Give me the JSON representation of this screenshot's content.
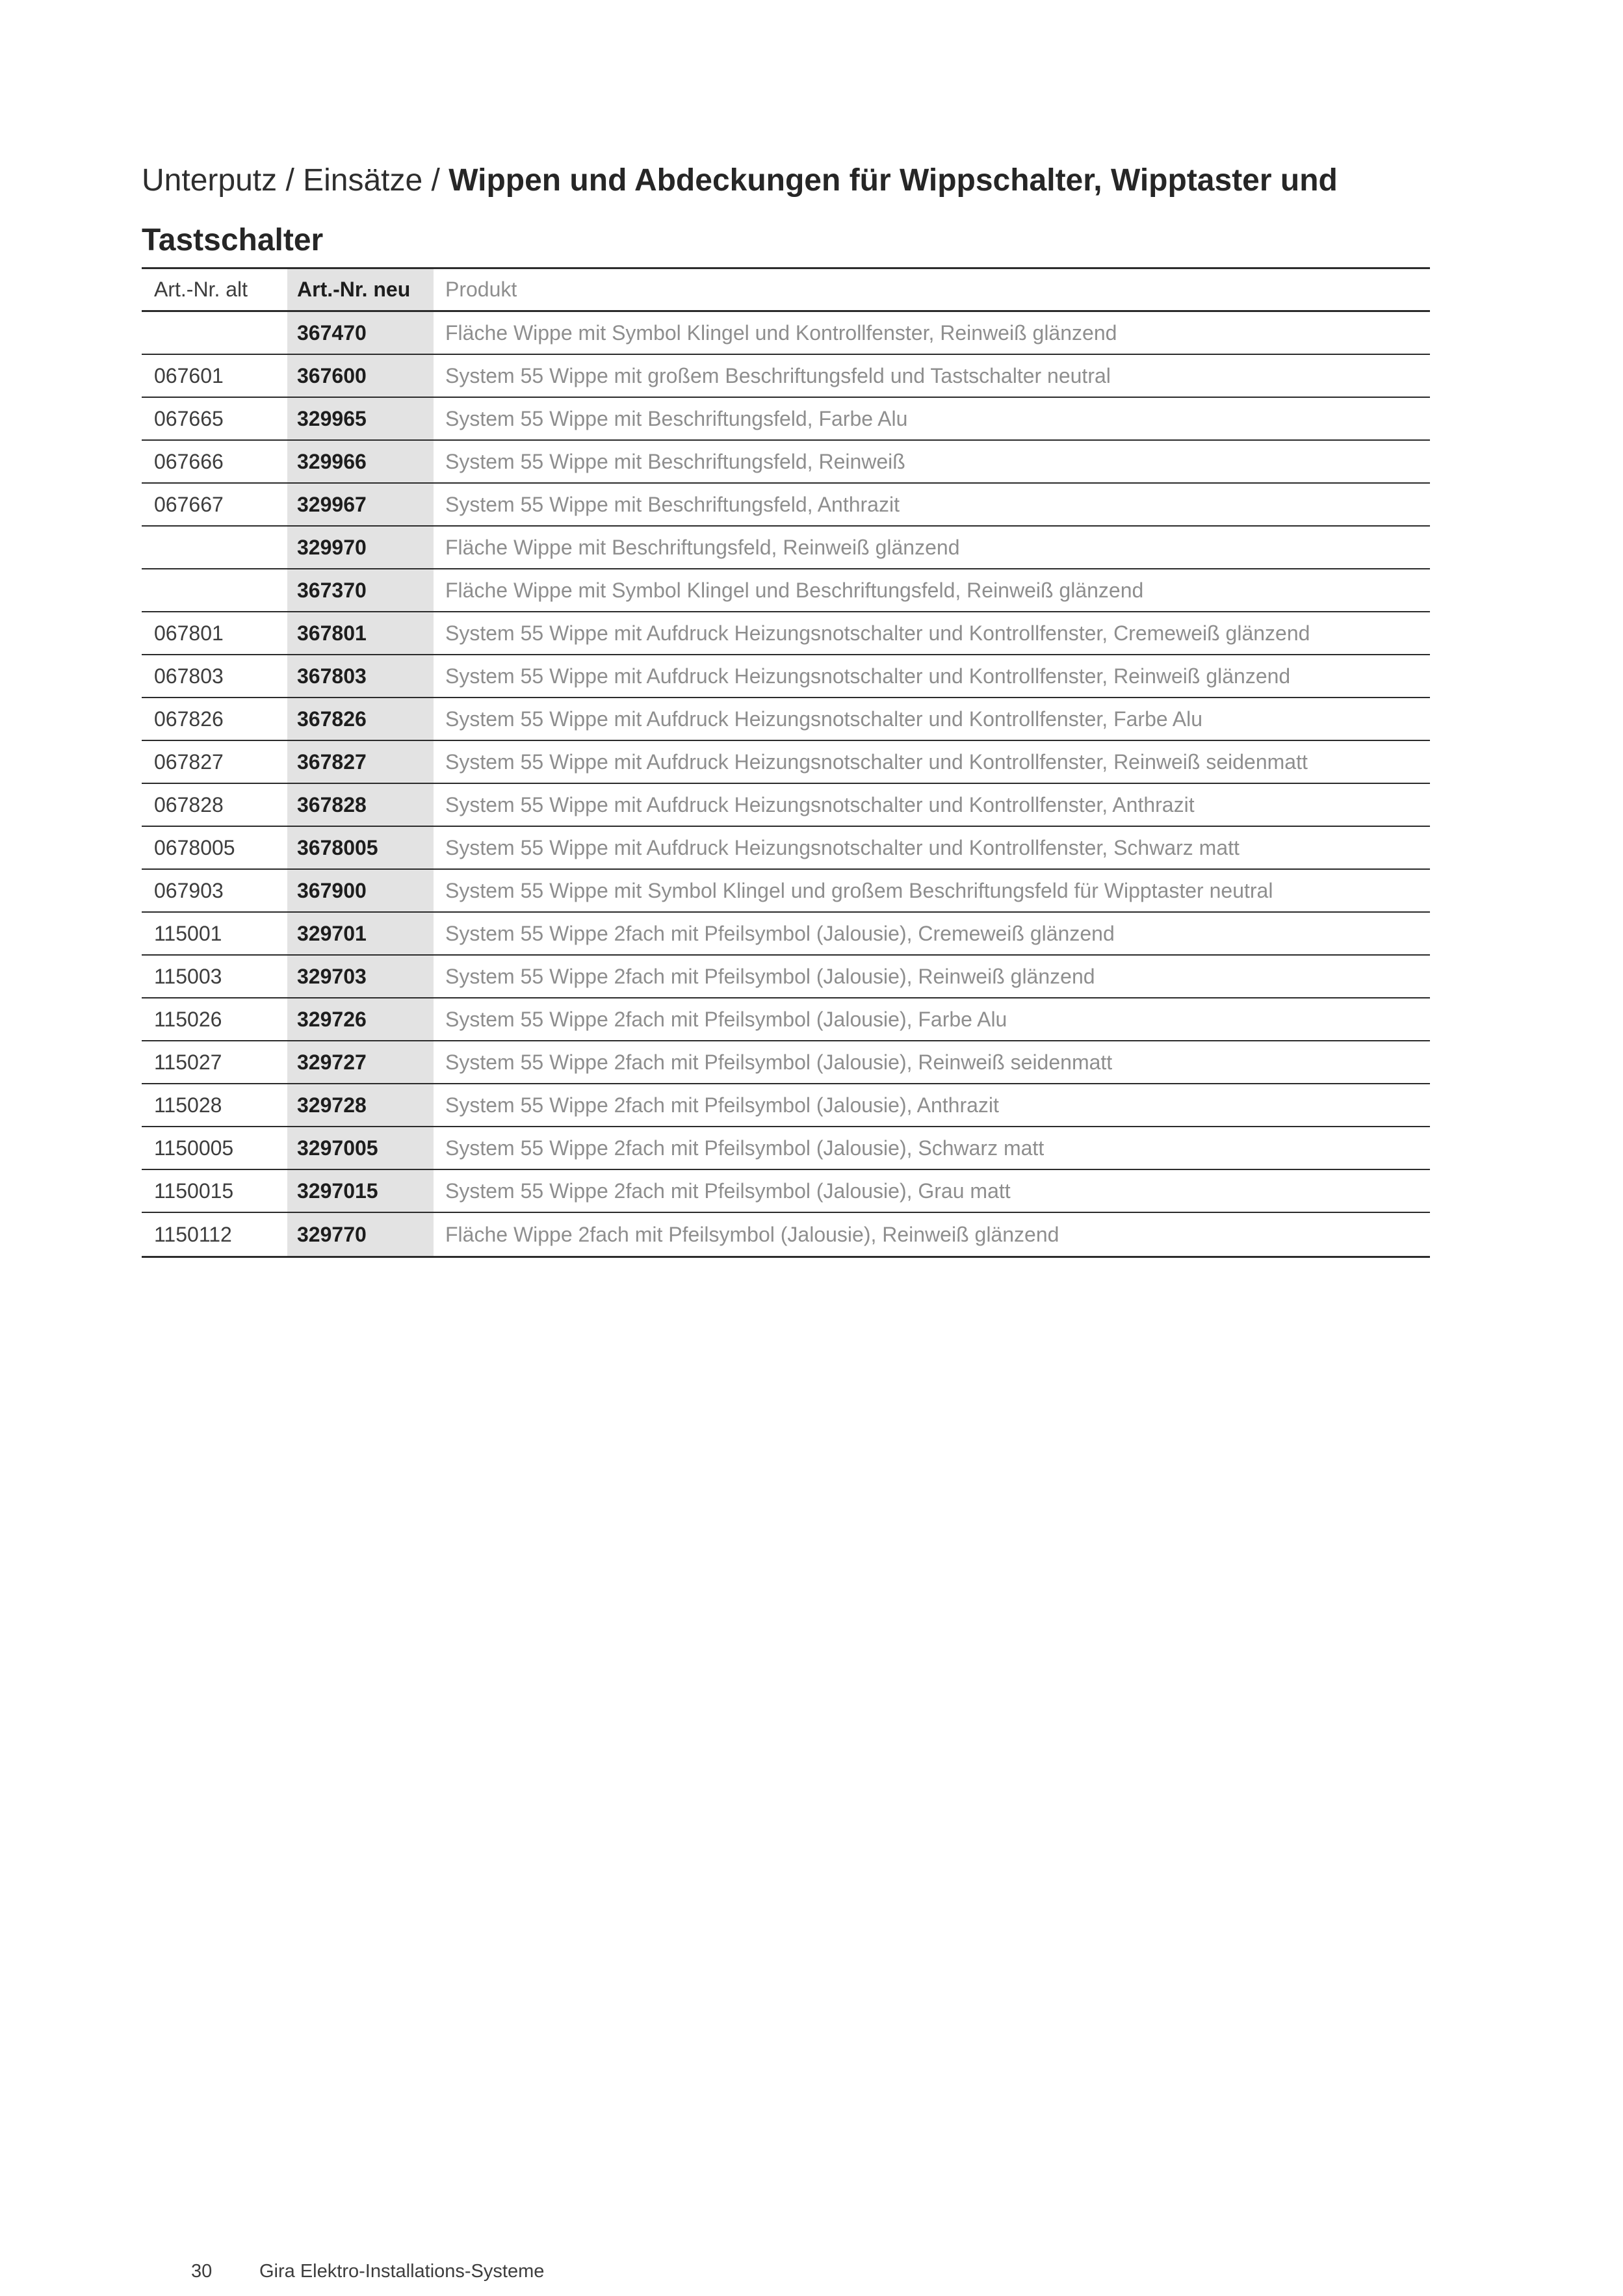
{
  "title": {
    "prefix": "Unterputz / Einsätze / ",
    "emphasis_line1": "Wippen und Abdeckungen für Wippschalter, Wipptaster und",
    "emphasis_line2": "Tastschalter"
  },
  "table": {
    "columns": [
      "Art.-Nr. alt",
      "Art.-Nr. neu",
      "Produkt"
    ],
    "rows": [
      {
        "alt": "",
        "neu": "367470",
        "produkt": "Fläche Wippe mit Symbol Klingel und Kontrollfenster, Reinweiß glänzend"
      },
      {
        "alt": "067601",
        "neu": "367600",
        "produkt": "System 55 Wippe mit großem Beschriftungsfeld und Tastschalter neutral"
      },
      {
        "alt": "067665",
        "neu": "329965",
        "produkt": "System 55 Wippe mit Beschriftungsfeld, Farbe Alu"
      },
      {
        "alt": "067666",
        "neu": "329966",
        "produkt": "System 55 Wippe mit Beschriftungsfeld, Reinweiß"
      },
      {
        "alt": "067667",
        "neu": "329967",
        "produkt": "System 55 Wippe mit Beschriftungsfeld, Anthrazit"
      },
      {
        "alt": "",
        "neu": "329970",
        "produkt": "Fläche Wippe mit Beschriftungsfeld, Reinweiß glänzend"
      },
      {
        "alt": "",
        "neu": "367370",
        "produkt": "Fläche Wippe mit Symbol Klingel und Beschriftungsfeld, Reinweiß glänzend"
      },
      {
        "alt": "067801",
        "neu": "367801",
        "produkt": "System 55 Wippe mit Aufdruck Heizungsnotschalter und Kontrollfenster, Cremeweiß glänzend"
      },
      {
        "alt": "067803",
        "neu": "367803",
        "produkt": "System 55 Wippe mit Aufdruck Heizungsnotschalter und Kontrollfenster, Reinweiß glänzend"
      },
      {
        "alt": "067826",
        "neu": "367826",
        "produkt": "System 55 Wippe mit Aufdruck Heizungsnotschalter und Kontrollfenster, Farbe Alu"
      },
      {
        "alt": "067827",
        "neu": "367827",
        "produkt": "System 55 Wippe mit Aufdruck Heizungsnotschalter und Kontrollfenster, Reinweiß seidenmatt"
      },
      {
        "alt": "067828",
        "neu": "367828",
        "produkt": "System 55 Wippe mit Aufdruck Heizungsnotschalter und Kontrollfenster, Anthrazit"
      },
      {
        "alt": "0678005",
        "neu": "3678005",
        "produkt": "System 55 Wippe mit Aufdruck Heizungsnotschalter und Kontrollfenster, Schwarz matt"
      },
      {
        "alt": "067903",
        "neu": "367900",
        "produkt": "System 55 Wippe mit Symbol Klingel und großem Beschriftungsfeld für Wipptaster neutral"
      },
      {
        "alt": "115001",
        "neu": "329701",
        "produkt": "System 55 Wippe 2fach mit Pfeilsymbol (Jalousie), Cremeweiß glänzend"
      },
      {
        "alt": "115003",
        "neu": "329703",
        "produkt": "System 55 Wippe 2fach mit Pfeilsymbol (Jalousie), Reinweiß glänzend"
      },
      {
        "alt": "115026",
        "neu": "329726",
        "produkt": "System 55 Wippe 2fach mit Pfeilsymbol (Jalousie), Farbe Alu"
      },
      {
        "alt": "115027",
        "neu": "329727",
        "produkt": "System 55 Wippe 2fach mit Pfeilsymbol (Jalousie), Reinweiß seidenmatt"
      },
      {
        "alt": "115028",
        "neu": "329728",
        "produkt": "System 55 Wippe 2fach mit Pfeilsymbol (Jalousie), Anthrazit"
      },
      {
        "alt": "1150005",
        "neu": "3297005",
        "produkt": "System 55 Wippe 2fach mit Pfeilsymbol (Jalousie), Schwarz matt"
      },
      {
        "alt": "1150015",
        "neu": "3297015",
        "produkt": "System 55 Wippe 2fach mit Pfeilsymbol (Jalousie), Grau matt"
      },
      {
        "alt": "1150112",
        "neu": "329770",
        "produkt": "Fläche Wippe 2fach mit Pfeilsymbol (Jalousie), Reinweiß glänzend"
      }
    ]
  },
  "footer": {
    "page_number": "30",
    "brand": "Gira Elektro-Installations-Systeme"
  },
  "colors": {
    "col_bg": "#e3e3e3",
    "rule": "#2b2b2b",
    "text_dark": "#3d3d3d",
    "text_bold": "#1d1d1d",
    "text_muted": "#8e8e8e"
  }
}
